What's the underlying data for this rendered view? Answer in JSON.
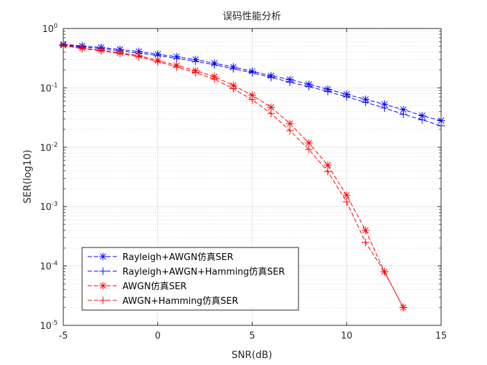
{
  "chart_data": {
    "type": "line",
    "title": "误码性能分析",
    "xlabel": "SNR(dB)",
    "ylabel": "SER(log10)",
    "xlim": [
      -5,
      15
    ],
    "ylim": [
      1e-05,
      1
    ],
    "yscale": "log",
    "grid": true,
    "minor_grid": true,
    "legend_position": "bottom-left",
    "x_ticks": [
      "-5",
      "0",
      "5",
      "10",
      "15"
    ],
    "y_ticks": [
      {
        "base": "10",
        "exp": "-5"
      },
      {
        "base": "10",
        "exp": "-4"
      },
      {
        "base": "10",
        "exp": "-3"
      },
      {
        "base": "10",
        "exp": "-2"
      },
      {
        "base": "10",
        "exp": "-1"
      },
      {
        "base": "10",
        "exp": "0"
      }
    ],
    "series": [
      {
        "name": "Rayleigh+AWGN仿真SER",
        "color": "#0000ff",
        "marker": "asterisk",
        "line": "dashed",
        "x": [
          -5,
          -4,
          -3,
          -2,
          -1,
          0,
          1,
          2,
          3,
          4,
          5,
          6,
          7,
          8,
          9,
          10,
          11,
          12,
          13,
          14,
          15
        ],
        "y": [
          0.54,
          0.51,
          0.48,
          0.445,
          0.41,
          0.37,
          0.335,
          0.3,
          0.26,
          0.225,
          0.19,
          0.16,
          0.138,
          0.115,
          0.095,
          0.078,
          0.064,
          0.053,
          0.043,
          0.034,
          0.028
        ]
      },
      {
        "name": "Rayleigh+AWGN+Hamming仿真SER",
        "color": "#0000ff",
        "marker": "plus",
        "line": "dashed",
        "x": [
          -5,
          -4,
          -3,
          -2,
          -1,
          0,
          1,
          2,
          3,
          4,
          5,
          6,
          7,
          8,
          9,
          10,
          11,
          12,
          13,
          14,
          15
        ],
        "y": [
          0.53,
          0.49,
          0.46,
          0.42,
          0.385,
          0.35,
          0.315,
          0.28,
          0.245,
          0.21,
          0.18,
          0.15,
          0.125,
          0.105,
          0.087,
          0.071,
          0.057,
          0.046,
          0.036,
          0.029,
          0.023
        ]
      },
      {
        "name": "AWGN仿真SER",
        "color": "#ff0000",
        "marker": "asterisk",
        "line": "dashed",
        "x": [
          -5,
          -4,
          -3,
          -2,
          -1,
          0,
          1,
          2,
          3,
          4,
          5,
          6,
          7,
          8,
          9,
          10,
          11,
          12,
          13
        ],
        "y": [
          0.52,
          0.47,
          0.43,
          0.39,
          0.35,
          0.29,
          0.24,
          0.195,
          0.155,
          0.11,
          0.075,
          0.047,
          0.025,
          0.0118,
          0.005,
          0.00155,
          0.0004,
          8e-05,
          2e-05
        ]
      },
      {
        "name": "AWGN+Hamming仿真SER",
        "color": "#ff0000",
        "marker": "plus",
        "line": "dashed",
        "x": [
          -5,
          -4,
          -3,
          -2,
          -1,
          0,
          1,
          2,
          3,
          4,
          5,
          6,
          7,
          8,
          9,
          10,
          11,
          12,
          13
        ],
        "y": [
          0.51,
          0.46,
          0.42,
          0.38,
          0.335,
          0.275,
          0.225,
          0.18,
          0.14,
          0.097,
          0.063,
          0.037,
          0.019,
          0.0092,
          0.0039,
          0.0012,
          0.00025,
          8e-05,
          2e-05
        ]
      }
    ]
  }
}
